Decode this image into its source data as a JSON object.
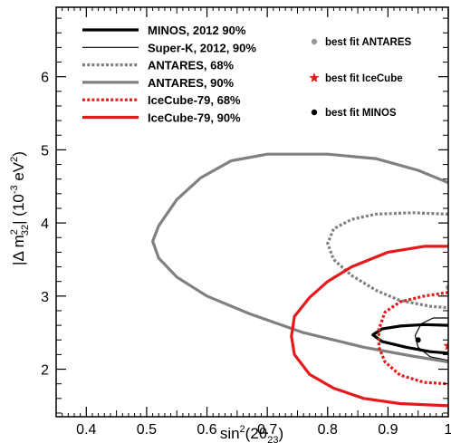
{
  "chart_data": {
    "type": "line",
    "xlabel_parts": {
      "base": "sin",
      "sup": "2",
      "open": "(2θ",
      "sub": "23",
      "close": ")"
    },
    "ylabel_parts": {
      "open": "|Δ m",
      "sup": "2",
      "sub": "32",
      "mid": "| (10",
      "sup2": "-3",
      "unit": " eV",
      "sup3": "2",
      "close": ")"
    },
    "xlim": [
      0.35,
      1.0
    ],
    "ylim": [
      1.35,
      6.95
    ],
    "xticks": [
      "0.4",
      "0.5",
      "0.6",
      "0.7",
      "0.8",
      "0.9",
      "1"
    ],
    "yticks": [
      "2",
      "3",
      "4",
      "5",
      "6"
    ],
    "grid": false,
    "legend_position": "top-left",
    "series": [
      {
        "name": "MINOS, 2012 90%",
        "color": "#000000",
        "style": "solid",
        "width": "thick",
        "points": [
          [
            1.0,
            2.6
          ],
          [
            0.96,
            2.61
          ],
          [
            0.92,
            2.59
          ],
          [
            0.89,
            2.55
          ],
          [
            0.875,
            2.47
          ],
          [
            0.89,
            2.38
          ],
          [
            0.93,
            2.3
          ],
          [
            0.97,
            2.24
          ],
          [
            1.0,
            2.22
          ]
        ]
      },
      {
        "name": "Super-K, 2012, 90%",
        "color": "#000000",
        "style": "solid",
        "width": "thin",
        "points": [
          [
            1.0,
            2.7
          ],
          [
            0.975,
            2.7
          ],
          [
            0.955,
            2.62
          ],
          [
            0.945,
            2.46
          ],
          [
            0.95,
            2.3
          ],
          [
            0.97,
            2.17
          ],
          [
            1.0,
            2.12
          ]
        ]
      },
      {
        "name": "ANTARES, 68%",
        "color": "#808080",
        "style": "dotted",
        "width": "thick",
        "points": [
          [
            1.0,
            4.12
          ],
          [
            0.94,
            4.14
          ],
          [
            0.88,
            4.12
          ],
          [
            0.84,
            4.05
          ],
          [
            0.81,
            3.92
          ],
          [
            0.8,
            3.72
          ],
          [
            0.81,
            3.5
          ],
          [
            0.84,
            3.28
          ],
          [
            0.88,
            3.08
          ],
          [
            0.92,
            2.94
          ],
          [
            0.97,
            2.86
          ],
          [
            1.0,
            2.84
          ]
        ]
      },
      {
        "name": "ANTARES, 90%",
        "color": "#808080",
        "style": "solid",
        "width": "thick",
        "points": [
          [
            1.0,
            4.55
          ],
          [
            0.95,
            4.72
          ],
          [
            0.88,
            4.88
          ],
          [
            0.8,
            4.94
          ],
          [
            0.7,
            4.94
          ],
          [
            0.64,
            4.85
          ],
          [
            0.59,
            4.62
          ],
          [
            0.55,
            4.32
          ],
          [
            0.52,
            3.96
          ],
          [
            0.51,
            3.75
          ],
          [
            0.52,
            3.52
          ],
          [
            0.55,
            3.26
          ],
          [
            0.6,
            3.0
          ],
          [
            0.67,
            2.76
          ],
          [
            0.76,
            2.5
          ],
          [
            0.86,
            2.3
          ],
          [
            0.94,
            2.18
          ],
          [
            1.0,
            2.1
          ]
        ]
      },
      {
        "name": "IceCube-79, 68%",
        "color": "#e41a1c",
        "style": "dotted",
        "width": "thick",
        "points": [
          [
            1.0,
            3.05
          ],
          [
            0.96,
            3.0
          ],
          [
            0.92,
            2.92
          ],
          [
            0.895,
            2.78
          ],
          [
            0.885,
            2.55
          ],
          [
            0.885,
            2.3
          ],
          [
            0.895,
            2.1
          ],
          [
            0.92,
            1.92
          ],
          [
            0.96,
            1.82
          ],
          [
            1.0,
            1.8
          ]
        ]
      },
      {
        "name": "IceCube-79, 90%",
        "color": "#e41a1c",
        "style": "solid",
        "width": "thick",
        "points": [
          [
            1.0,
            3.68
          ],
          [
            0.96,
            3.68
          ],
          [
            0.9,
            3.6
          ],
          [
            0.84,
            3.4
          ],
          [
            0.8,
            3.2
          ],
          [
            0.77,
            2.98
          ],
          [
            0.745,
            2.72
          ],
          [
            0.74,
            2.45
          ],
          [
            0.745,
            2.2
          ],
          [
            0.77,
            1.93
          ],
          [
            0.81,
            1.74
          ],
          [
            0.86,
            1.6
          ],
          [
            0.92,
            1.53
          ],
          [
            1.0,
            1.5
          ]
        ]
      }
    ],
    "best_fits": [
      {
        "name": "best fit ANTARES",
        "marker": "dot",
        "color": "#999999",
        "x": 1.0,
        "y": 3.12
      },
      {
        "name": "best fit IceCube",
        "marker": "star",
        "color": "#e41a1c",
        "x": 1.0,
        "y": 2.32
      },
      {
        "name": "best fit MINOS",
        "marker": "dot",
        "color": "#000000",
        "x": 0.95,
        "y": 2.4
      }
    ]
  }
}
